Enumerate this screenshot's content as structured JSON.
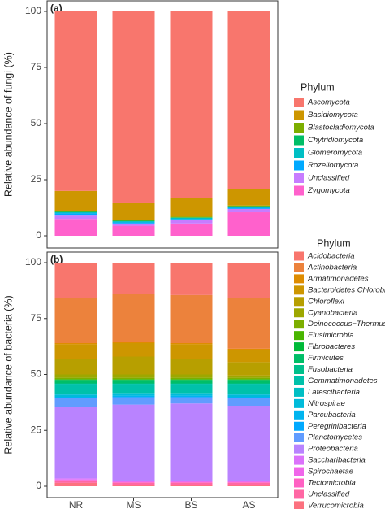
{
  "chart_data": [
    {
      "type": "stacked-bar",
      "panel_label": "(a)",
      "y_label": "Relative abundance of fungi (%)",
      "legend_title": "Phylum",
      "ylim": [
        0,
        100
      ],
      "yticks": [
        0,
        25,
        50,
        75,
        100
      ],
      "series": [
        {
          "name": "Ascomycota",
          "color": "#F8766D",
          "values": [
            80,
            85.5,
            83,
            79
          ]
        },
        {
          "name": "Basidiomycota",
          "color": "#CD9600",
          "values": [
            9,
            7.5,
            8.5,
            7.5
          ]
        },
        {
          "name": "Blastocladiomycota",
          "color": "#7CAE00",
          "values": [
            0.3,
            0.3,
            0.3,
            0.3
          ]
        },
        {
          "name": "Chytridiomycota",
          "color": "#00BE67",
          "values": [
            0.2,
            0.2,
            0.2,
            0.2
          ]
        },
        {
          "name": "Glomeromycota",
          "color": "#00BFC4",
          "values": [
            0.5,
            0.5,
            0.5,
            0.5
          ]
        },
        {
          "name": "Rozellomycota",
          "color": "#00A9FF",
          "values": [
            1,
            0.5,
            0.5,
            0.5
          ]
        },
        {
          "name": "Unclassified",
          "color": "#C77CFF",
          "values": [
            1.5,
            1,
            1.5,
            1.5
          ]
        },
        {
          "name": "Zygomycota",
          "color": "#FF61CC",
          "values": [
            7.5,
            4.5,
            5.5,
            10.5
          ]
        }
      ]
    },
    {
      "type": "stacked-bar",
      "panel_label": "(b)",
      "y_label": "Relative abundance of bacteria (%)",
      "legend_title": "Phylum",
      "categories": [
        "NR",
        "MS",
        "BS",
        "AS"
      ],
      "ylim": [
        0,
        100
      ],
      "yticks": [
        0,
        25,
        50,
        75,
        100
      ],
      "series": [
        {
          "name": "Acidobacteria",
          "color": "#F8766D",
          "values": [
            16,
            14,
            14.5,
            16
          ]
        },
        {
          "name": "Actinobacteria",
          "color": "#EC823C",
          "values": [
            20,
            21.5,
            21.5,
            22.5
          ]
        },
        {
          "name": "Armatimonadetes",
          "color": "#DE8C00",
          "values": [
            0.5,
            0.5,
            0.5,
            0.5
          ]
        },
        {
          "name": "Bacteroidetes Chlorobi",
          "color": "#CD9600",
          "values": [
            6.5,
            6,
            6.5,
            5.5
          ]
        },
        {
          "name": "Chloroflexi",
          "color": "#B79F00",
          "values": [
            7,
            8,
            7,
            6
          ]
        },
        {
          "name": "Cyanobacteria",
          "color": "#9DA700",
          "values": [
            1.5,
            1.5,
            1.5,
            1
          ]
        },
        {
          "name": "Deinococcus−Thermus",
          "color": "#7CAE00",
          "values": [
            0.5,
            0.5,
            0.5,
            0.5
          ]
        },
        {
          "name": "Elusimicrobia",
          "color": "#49B500",
          "values": [
            0.3,
            0.3,
            0.3,
            0.3
          ]
        },
        {
          "name": "Fibrobacteres",
          "color": "#00BA38",
          "values": [
            0.2,
            0.2,
            0.2,
            0.2
          ]
        },
        {
          "name": "Firmicutes",
          "color": "#00BE67",
          "values": [
            1.5,
            1.5,
            1.5,
            1.5
          ]
        },
        {
          "name": "Fusobacteria",
          "color": "#00C08B",
          "values": [
            0.2,
            0.2,
            0.2,
            0.2
          ]
        },
        {
          "name": "Gemmatimonadetes",
          "color": "#00C1AA",
          "values": [
            4.5,
            4,
            4,
            4.5
          ]
        },
        {
          "name": "Latescibacteria",
          "color": "#00BFC4",
          "values": [
            0.3,
            0.3,
            0.3,
            0.3
          ]
        },
        {
          "name": "Nitrospirae",
          "color": "#00BBDA",
          "values": [
            1,
            1,
            1,
            1
          ]
        },
        {
          "name": "Parcubacteria",
          "color": "#00B4EF",
          "values": [
            0.5,
            0.5,
            0.5,
            0.5
          ]
        },
        {
          "name": "Peregrinibacteria",
          "color": "#00A9FF",
          "values": [
            0.2,
            0.2,
            0.2,
            0.2
          ]
        },
        {
          "name": "Planctomycetes",
          "color": "#619CFF",
          "values": [
            3.8,
            3.3,
            2.8,
            3.3
          ]
        },
        {
          "name": "Proteobacteria",
          "color": "#B983FF",
          "values": [
            32,
            34,
            34.5,
            33.5
          ]
        },
        {
          "name": "Saccharibacteria",
          "color": "#DB72FB",
          "values": [
            0.5,
            0.5,
            0.5,
            0.5
          ]
        },
        {
          "name": "Spirochaetae",
          "color": "#F066EA",
          "values": [
            0.2,
            0.2,
            0.2,
            0.2
          ]
        },
        {
          "name": "Tectomicrobia",
          "color": "#FF61C3",
          "values": [
            0.3,
            0.3,
            0.3,
            0.3
          ]
        },
        {
          "name": "Unclassified",
          "color": "#FF67A4",
          "values": [
            1,
            1,
            1,
            1
          ]
        },
        {
          "name": "Verrucomicrobia",
          "color": "#FC717F",
          "values": [
            1.5,
            0.5,
            0.5,
            0.5
          ]
        }
      ]
    }
  ]
}
